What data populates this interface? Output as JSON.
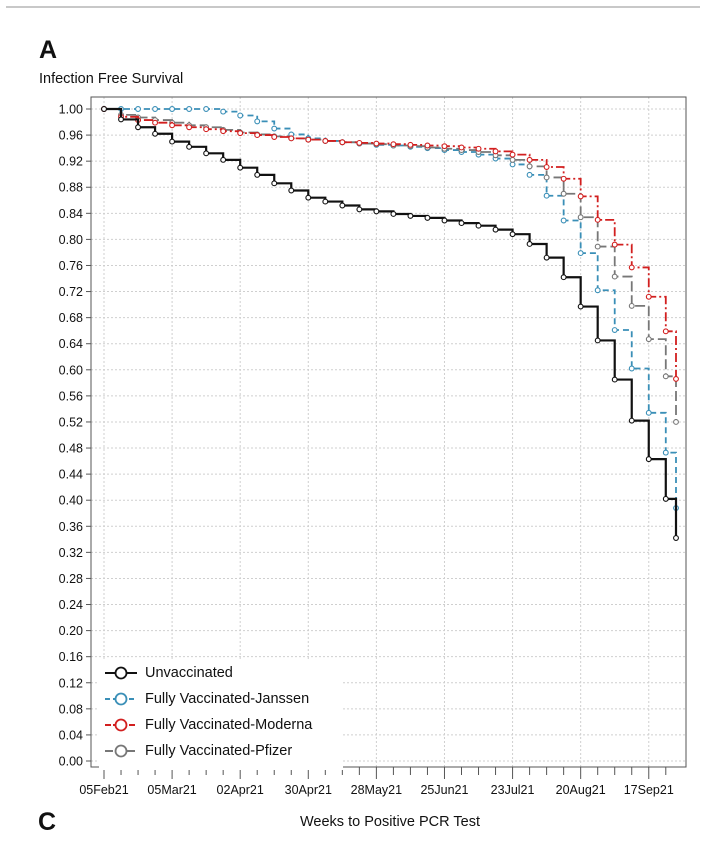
{
  "panel_labels": {
    "top": "A",
    "bottom": "C"
  },
  "chart_data": {
    "type": "line",
    "step": true,
    "title": "",
    "ylabel": "Infection Free Survival",
    "xlabel": "Weeks to Positive PCR Test",
    "ylim": [
      0.0,
      1.0
    ],
    "yticks": [
      0.0,
      0.04,
      0.08,
      0.12,
      0.16,
      0.2,
      0.24,
      0.28,
      0.32,
      0.36,
      0.4,
      0.44,
      0.48,
      0.52,
      0.56,
      0.6,
      0.64,
      0.68,
      0.72,
      0.76,
      0.8,
      0.84,
      0.88,
      0.92,
      0.96,
      1.0
    ],
    "ytick_labels": [
      "0.00",
      "0.04",
      "0.08",
      "0.12",
      "0.16",
      "0.20",
      "0.24",
      "0.28",
      "0.32",
      "0.36",
      "0.40",
      "0.44",
      "0.48",
      "0.52",
      "0.56",
      "0.60",
      "0.64",
      "0.68",
      "0.72",
      "0.76",
      "0.80",
      "0.84",
      "0.88",
      "0.92",
      "0.96",
      "1.00"
    ],
    "xlim": [
      0,
      33.6
    ],
    "xticks": [
      0,
      4,
      8,
      12,
      16,
      20,
      24,
      28,
      32
    ],
    "xtick_labels": [
      "05Feb21",
      "05Mar21",
      "02Apr21",
      "30Apr21",
      "28May21",
      "25Jun21",
      "23Jul21",
      "20Aug21",
      "17Sep21"
    ],
    "minor_ticks_per_week": true,
    "grid": true,
    "legend_position": "bottom-left",
    "series": [
      {
        "name": "Unvaccinated",
        "color": "#111111",
        "dash": "solid",
        "x": [
          0,
          1,
          2,
          3,
          4,
          5,
          6,
          7,
          8,
          9,
          10,
          11,
          12,
          13,
          14,
          15,
          16,
          17,
          18,
          19,
          20,
          21,
          22,
          23,
          24,
          25,
          26,
          27,
          28,
          29,
          30,
          31,
          32,
          33,
          33.6
        ],
        "y": [
          1.0,
          0.984,
          0.972,
          0.962,
          0.95,
          0.942,
          0.932,
          0.922,
          0.91,
          0.899,
          0.886,
          0.875,
          0.864,
          0.858,
          0.852,
          0.846,
          0.843,
          0.839,
          0.836,
          0.833,
          0.829,
          0.825,
          0.821,
          0.815,
          0.808,
          0.793,
          0.772,
          0.742,
          0.697,
          0.645,
          0.585,
          0.522,
          0.463,
          0.402,
          0.342
        ]
      },
      {
        "name": "Fully Vaccinated-Janssen",
        "color": "#3a8fb7",
        "dash": "dashed",
        "x": [
          0,
          1,
          2,
          3,
          4,
          5,
          6,
          7,
          8,
          9,
          10,
          11,
          12,
          13,
          14,
          15,
          16,
          17,
          18,
          19,
          20,
          21,
          22,
          23,
          24,
          25,
          26,
          27,
          28,
          29,
          30,
          31,
          32,
          33,
          33.6
        ],
        "y": [
          1.0,
          1.0,
          1.0,
          1.0,
          1.0,
          1.0,
          1.0,
          0.996,
          0.99,
          0.981,
          0.97,
          0.961,
          0.955,
          0.951,
          0.949,
          0.947,
          0.945,
          0.944,
          0.942,
          0.94,
          0.937,
          0.934,
          0.93,
          0.924,
          0.915,
          0.899,
          0.867,
          0.829,
          0.779,
          0.722,
          0.661,
          0.602,
          0.534,
          0.473,
          0.388
        ]
      },
      {
        "name": "Fully Vaccinated-Moderna",
        "color": "#d21f1f",
        "dash": "dashdot",
        "x": [
          0,
          1,
          2,
          3,
          4,
          5,
          6,
          7,
          8,
          9,
          10,
          11,
          12,
          13,
          14,
          15,
          16,
          17,
          18,
          19,
          20,
          21,
          22,
          23,
          24,
          25,
          26,
          27,
          28,
          29,
          30,
          31,
          32,
          33,
          33.6
        ],
        "y": [
          1.0,
          0.988,
          0.983,
          0.979,
          0.975,
          0.972,
          0.969,
          0.966,
          0.963,
          0.96,
          0.957,
          0.955,
          0.953,
          0.951,
          0.949,
          0.948,
          0.947,
          0.946,
          0.945,
          0.944,
          0.943,
          0.941,
          0.939,
          0.935,
          0.93,
          0.922,
          0.911,
          0.893,
          0.866,
          0.83,
          0.792,
          0.757,
          0.712,
          0.659,
          0.586
        ]
      },
      {
        "name": "Fully Vaccinated-Pfizer",
        "color": "#777777",
        "dash": "longdash",
        "x": [
          0,
          1,
          2,
          3,
          4,
          5,
          6,
          7,
          8,
          9,
          10,
          11,
          12,
          13,
          14,
          15,
          16,
          17,
          18,
          19,
          20,
          21,
          22,
          23,
          24,
          25,
          26,
          27,
          28,
          29,
          30,
          31,
          32,
          33,
          33.6
        ],
        "y": [
          1.0,
          0.991,
          0.987,
          0.983,
          0.979,
          0.975,
          0.972,
          0.968,
          0.964,
          0.961,
          0.958,
          0.955,
          0.953,
          0.951,
          0.949,
          0.947,
          0.946,
          0.944,
          0.943,
          0.941,
          0.939,
          0.937,
          0.934,
          0.929,
          0.922,
          0.912,
          0.895,
          0.87,
          0.834,
          0.789,
          0.743,
          0.698,
          0.647,
          0.59,
          0.52
        ]
      }
    ]
  }
}
